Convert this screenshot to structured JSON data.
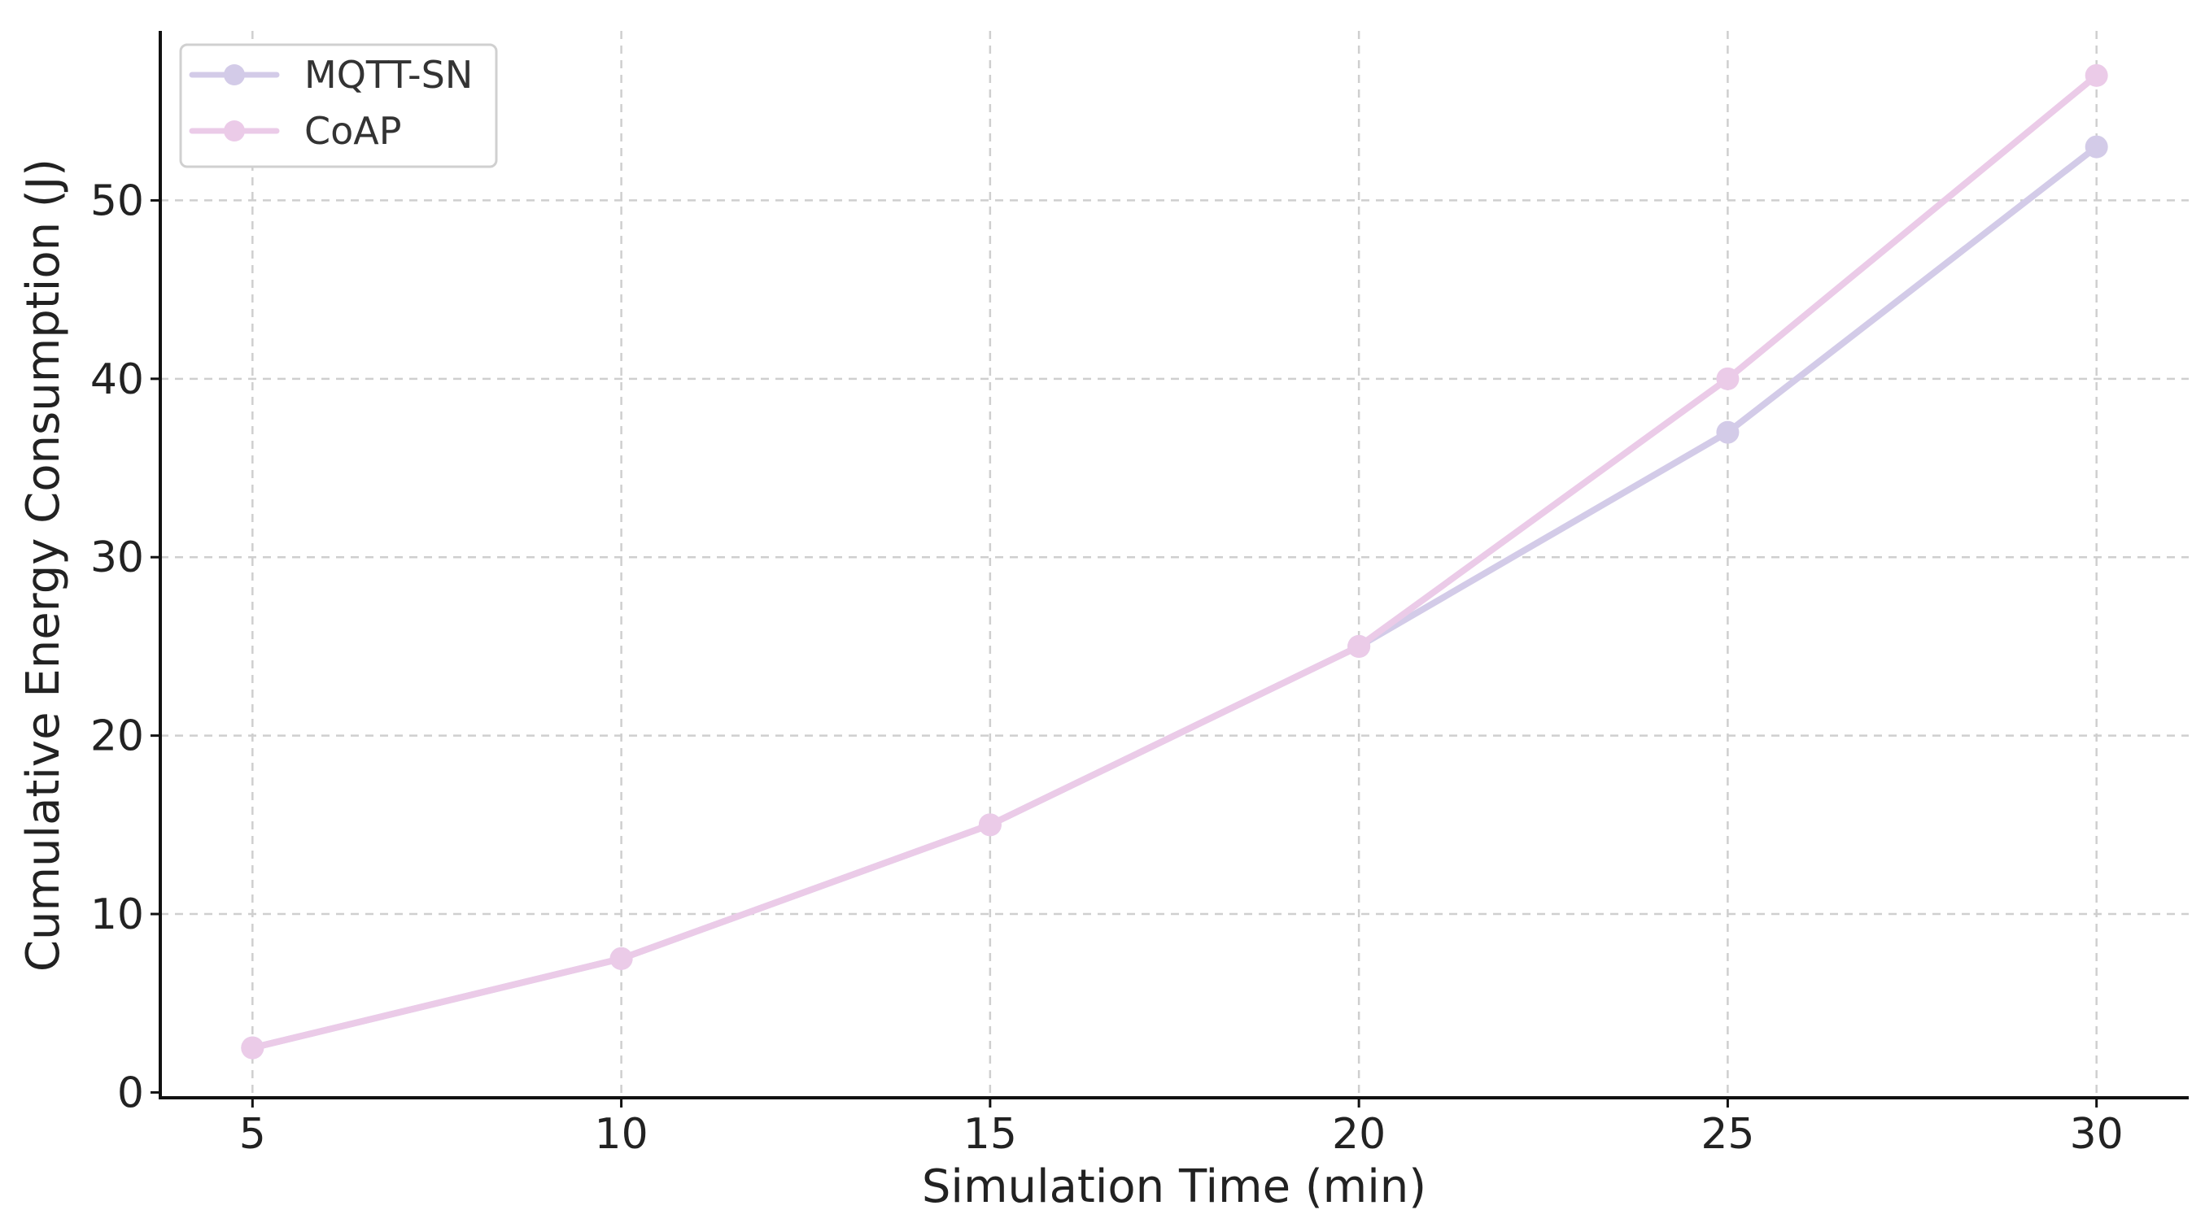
{
  "chart_data": {
    "type": "line",
    "title": "",
    "xlabel": "Simulation Time (min)",
    "ylabel": "Cumulative Energy Consumption (J)",
    "x": [
      5,
      10,
      15,
      20,
      25,
      30
    ],
    "xticks": [
      "5",
      "10",
      "15",
      "20",
      "25",
      "30"
    ],
    "yticks": [
      "0",
      "10",
      "20",
      "30",
      "40",
      "50"
    ],
    "xlim": [
      3.75,
      31.25
    ],
    "ylim": [
      -0.3,
      59.5
    ],
    "grid": true,
    "legend_position": "top-left",
    "series": [
      {
        "name": "MQTT-SN",
        "color": "#d3cbe8",
        "values": [
          2.5,
          7.5,
          15,
          25,
          37,
          53
        ]
      },
      {
        "name": "CoAP",
        "color": "#ebcbe8",
        "values": [
          2.5,
          7.5,
          15,
          25,
          40,
          57
        ]
      }
    ]
  }
}
